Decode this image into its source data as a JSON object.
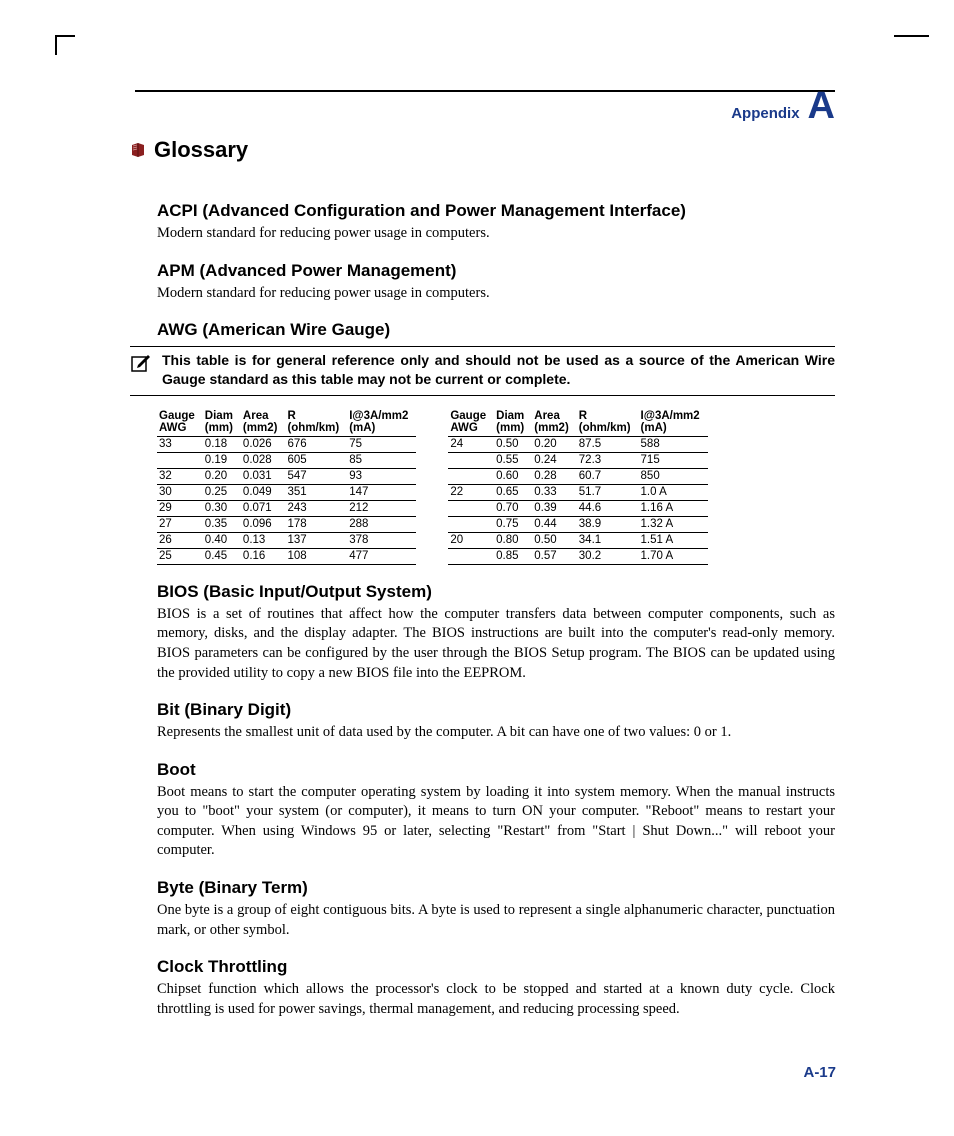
{
  "colors": {
    "brand": "#1a3a8a",
    "text": "#000000",
    "bg": "#ffffff"
  },
  "header": {
    "label": "Appendix",
    "letter": "A"
  },
  "title": "Glossary",
  "terms": [
    {
      "h": "ACPI (Advanced Configuration and Power Management Interface)",
      "p": "Modern standard for reducing power usage in computers."
    },
    {
      "h": "APM (Advanced Power Management)",
      "p": "Modern standard for reducing power usage in computers."
    },
    {
      "h": "AWG (American Wire Gauge)"
    }
  ],
  "note": "This table is for general reference only and should not be used as a source of the American Wire Gauge standard as this table may not be current or complete.",
  "table": {
    "columns": [
      {
        "h1": "Gauge",
        "h2": "AWG"
      },
      {
        "h1": "Diam",
        "h2": "(mm)"
      },
      {
        "h1": "Area",
        "h2": "(mm2)"
      },
      {
        "h1": "R",
        "h2": "(ohm/km)"
      },
      {
        "h1": "I@3A/mm2",
        "h2": "(mA)"
      }
    ],
    "left": [
      {
        "g": "33",
        "d": "0.18",
        "a": "0.026",
        "r": "676",
        "i": "75",
        "rule": true
      },
      {
        "g": "",
        "d": "0.19",
        "a": "0.028",
        "r": "605",
        "i": "85",
        "rule": true
      },
      {
        "g": "32",
        "d": "0.20",
        "a": "0.031",
        "r": "547",
        "i": "93",
        "rule": true
      },
      {
        "g": "30",
        "d": "0.25",
        "a": "0.049",
        "r": "351",
        "i": "147",
        "rule": true
      },
      {
        "g": "29",
        "d": "0.30",
        "a": "0.071",
        "r": "243",
        "i": "212",
        "rule": true
      },
      {
        "g": "27",
        "d": "0.35",
        "a": "0.096",
        "r": "178",
        "i": "288",
        "rule": true
      },
      {
        "g": "26",
        "d": "0.40",
        "a": "0.13",
        "r": "137",
        "i": "378",
        "rule": true
      },
      {
        "g": "25",
        "d": "0.45",
        "a": "0.16",
        "r": "108",
        "i": "477",
        "rule": false
      }
    ],
    "right": [
      {
        "g": "24",
        "d": "0.50",
        "a": "0.20",
        "r": "87.5",
        "i": "588",
        "rule": true
      },
      {
        "g": "",
        "d": "0.55",
        "a": "0.24",
        "r": "72.3",
        "i": "715",
        "rule": true
      },
      {
        "g": "",
        "d": "0.60",
        "a": "0.28",
        "r": "60.7",
        "i": "850",
        "rule": true
      },
      {
        "g": "22",
        "d": "0.65",
        "a": "0.33",
        "r": "51.7",
        "i": "1.0 A",
        "rule": true
      },
      {
        "g": "",
        "d": "0.70",
        "a": "0.39",
        "r": "44.6",
        "i": "1.16 A",
        "rule": true
      },
      {
        "g": "",
        "d": "0.75",
        "a": "0.44",
        "r": "38.9",
        "i": "1.32 A",
        "rule": true
      },
      {
        "g": "20",
        "d": "0.80",
        "a": "0.50",
        "r": "34.1",
        "i": "1.51 A",
        "rule": true
      },
      {
        "g": "",
        "d": "0.85",
        "a": "0.57",
        "r": "30.2",
        "i": "1.70 A",
        "rule": false
      }
    ]
  },
  "terms2": [
    {
      "h": "BIOS (Basic Input/Output System)",
      "p": "BIOS is a set of routines that affect how the computer transfers data between computer components, such as memory, disks, and the display adapter. The BIOS instructions are built into the computer's read-only memory. BIOS parameters can be configured by the user through the BIOS Setup program. The BIOS can be updated using the provided utility to copy a new BIOS file into the EEPROM."
    },
    {
      "h": "Bit (Binary Digit)",
      "p": "Represents the smallest unit of data used by the computer. A bit can have one of two values: 0 or 1."
    },
    {
      "h": "Boot",
      "p": "Boot means to start the computer operating system by loading it into system memory. When the manual instructs you to \"boot\" your system (or computer), it means to turn ON your computer. \"Reboot\" means to restart your computer. When using Windows 95 or later, selecting \"Restart\" from \"Start | Shut Down...\" will reboot your computer."
    },
    {
      "h": "Byte (Binary Term)",
      "p": "One byte is a group of eight contiguous bits. A byte is used to represent a single alphanumeric character, punctuation mark, or other symbol."
    },
    {
      "h": "Clock Throttling",
      "p": "Chipset function which allows the processor's clock to be stopped and started at a known duty cycle. Clock throttling is used for power savings, thermal management, and reducing processing speed."
    }
  ],
  "pagenum": "A-17"
}
